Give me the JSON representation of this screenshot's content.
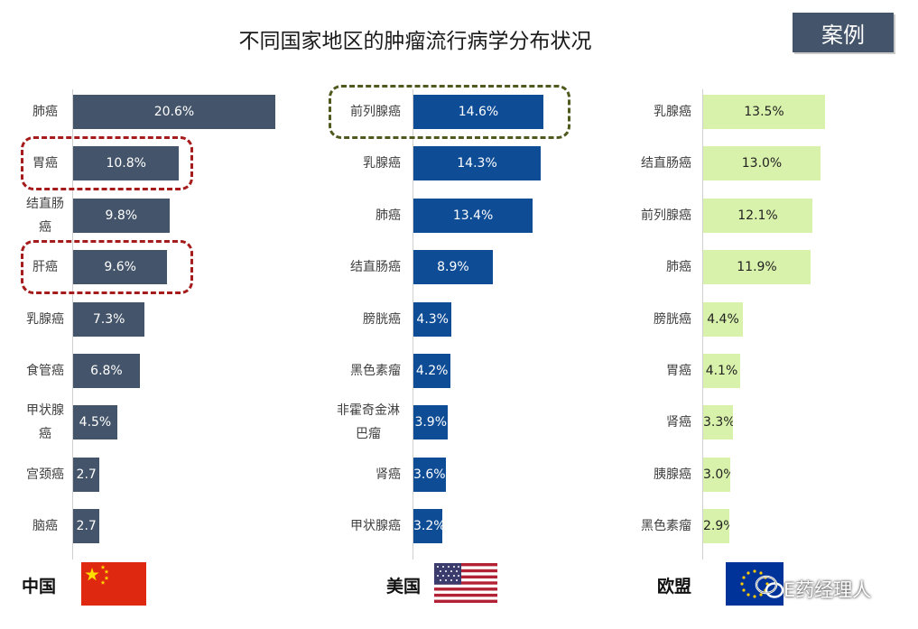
{
  "title": "不同国家地区的肿瘤流行病学分布状况",
  "badge": "案例",
  "watermark": "E药经理人",
  "colors": {
    "china": "#44546a",
    "usa": "#0e4c96",
    "europe": "#d8f2ab"
  },
  "chart_data": [
    {
      "type": "bar",
      "orientation": "horizontal",
      "region": "中国",
      "categories": [
        "肺癌",
        "胃癌",
        "结直肠癌",
        "肝癌",
        "乳腺癌",
        "食管癌",
        "甲状腺癌",
        "宫颈癌",
        "脑癌"
      ],
      "values": [
        20.6,
        10.8,
        9.8,
        9.6,
        7.3,
        6.8,
        4.5,
        2.7,
        2.7
      ],
      "labels": [
        "20.6%",
        "10.8%",
        "9.8%",
        "9.6%",
        "7.3%",
        "6.8%",
        "4.5%",
        "2.7",
        "2.7"
      ],
      "highlighted": [
        "胃癌",
        "肝癌"
      ]
    },
    {
      "type": "bar",
      "orientation": "horizontal",
      "region": "美国",
      "categories": [
        "前列腺癌",
        "乳腺癌",
        "肺癌",
        "结直肠癌",
        "膀胱癌",
        "黑色素瘤",
        "非霍奇金淋巴瘤",
        "肾癌",
        "甲状腺癌"
      ],
      "values": [
        14.6,
        14.3,
        13.4,
        8.9,
        4.3,
        4.2,
        3.9,
        3.6,
        3.2
      ],
      "labels": [
        "14.6%",
        "14.3%",
        "13.4%",
        "8.9%",
        "4.3%",
        "4.2%",
        "3.9%",
        "3.6%",
        "3.2%"
      ],
      "highlighted": [
        "前列腺癌"
      ]
    },
    {
      "type": "bar",
      "orientation": "horizontal",
      "region": "欧盟",
      "categories": [
        "乳腺癌",
        "结直肠癌",
        "前列腺癌",
        "肺癌",
        "膀胱癌",
        "胃癌",
        "肾癌",
        "胰腺癌",
        "黑色素瘤"
      ],
      "values": [
        13.5,
        13.0,
        12.1,
        11.9,
        4.4,
        4.1,
        3.3,
        3.0,
        2.9
      ],
      "labels": [
        "13.5%",
        "13.0%",
        "12.1%",
        "11.9%",
        "4.4%",
        "4.1%",
        "3.3%",
        "3.0%",
        "2.9%"
      ],
      "highlighted": []
    }
  ]
}
